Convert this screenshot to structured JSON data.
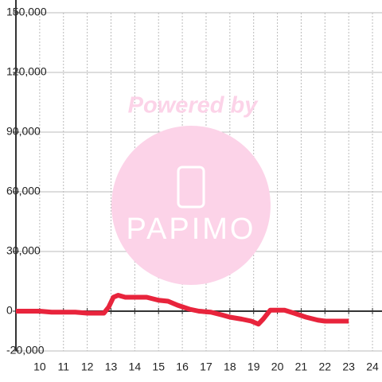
{
  "chart_data": {
    "type": "line",
    "watermark": "Powered by",
    "logo_text": "PAPIMO",
    "x": [
      9,
      10,
      10.5,
      11.5,
      12,
      12.7,
      12.9,
      13.1,
      13.3,
      13.6,
      14.5,
      15,
      15.4,
      15.8,
      16.3,
      16.7,
      17.2,
      17.7,
      18,
      18.5,
      18.9,
      19.2,
      19.4,
      19.7,
      20.3,
      20.7,
      21.2,
      21.7,
      22,
      23
    ],
    "series": [
      {
        "color": "#e8243c",
        "values": [
          0,
          0,
          -500,
          -500,
          -1000,
          -1000,
          2000,
          7000,
          8000,
          7000,
          7000,
          5500,
          5000,
          3000,
          1000,
          0,
          -500,
          -2000,
          -3000,
          -4000,
          -5000,
          -6500,
          -4000,
          500,
          500,
          -1000,
          -3000,
          -4500,
          -5000,
          -5000
        ]
      }
    ],
    "xlim": [
      9,
      24.4
    ],
    "ylim": [
      -20000,
      150000
    ],
    "xticks": [
      10,
      11,
      12,
      13,
      14,
      15,
      16,
      17,
      18,
      19,
      20,
      21,
      22,
      23,
      24
    ],
    "yticks": [
      {
        "value": -20000,
        "label": "-20,000"
      },
      0,
      {
        "value": 30000,
        "label": "30,000"
      },
      {
        "value": 60000,
        "label": "60,000"
      },
      {
        "value": 90000,
        "label": "90,000"
      },
      {
        "value": 120000,
        "label": "120,000"
      },
      {
        "value": 150000,
        "label": "150,000"
      }
    ],
    "grid": true
  }
}
